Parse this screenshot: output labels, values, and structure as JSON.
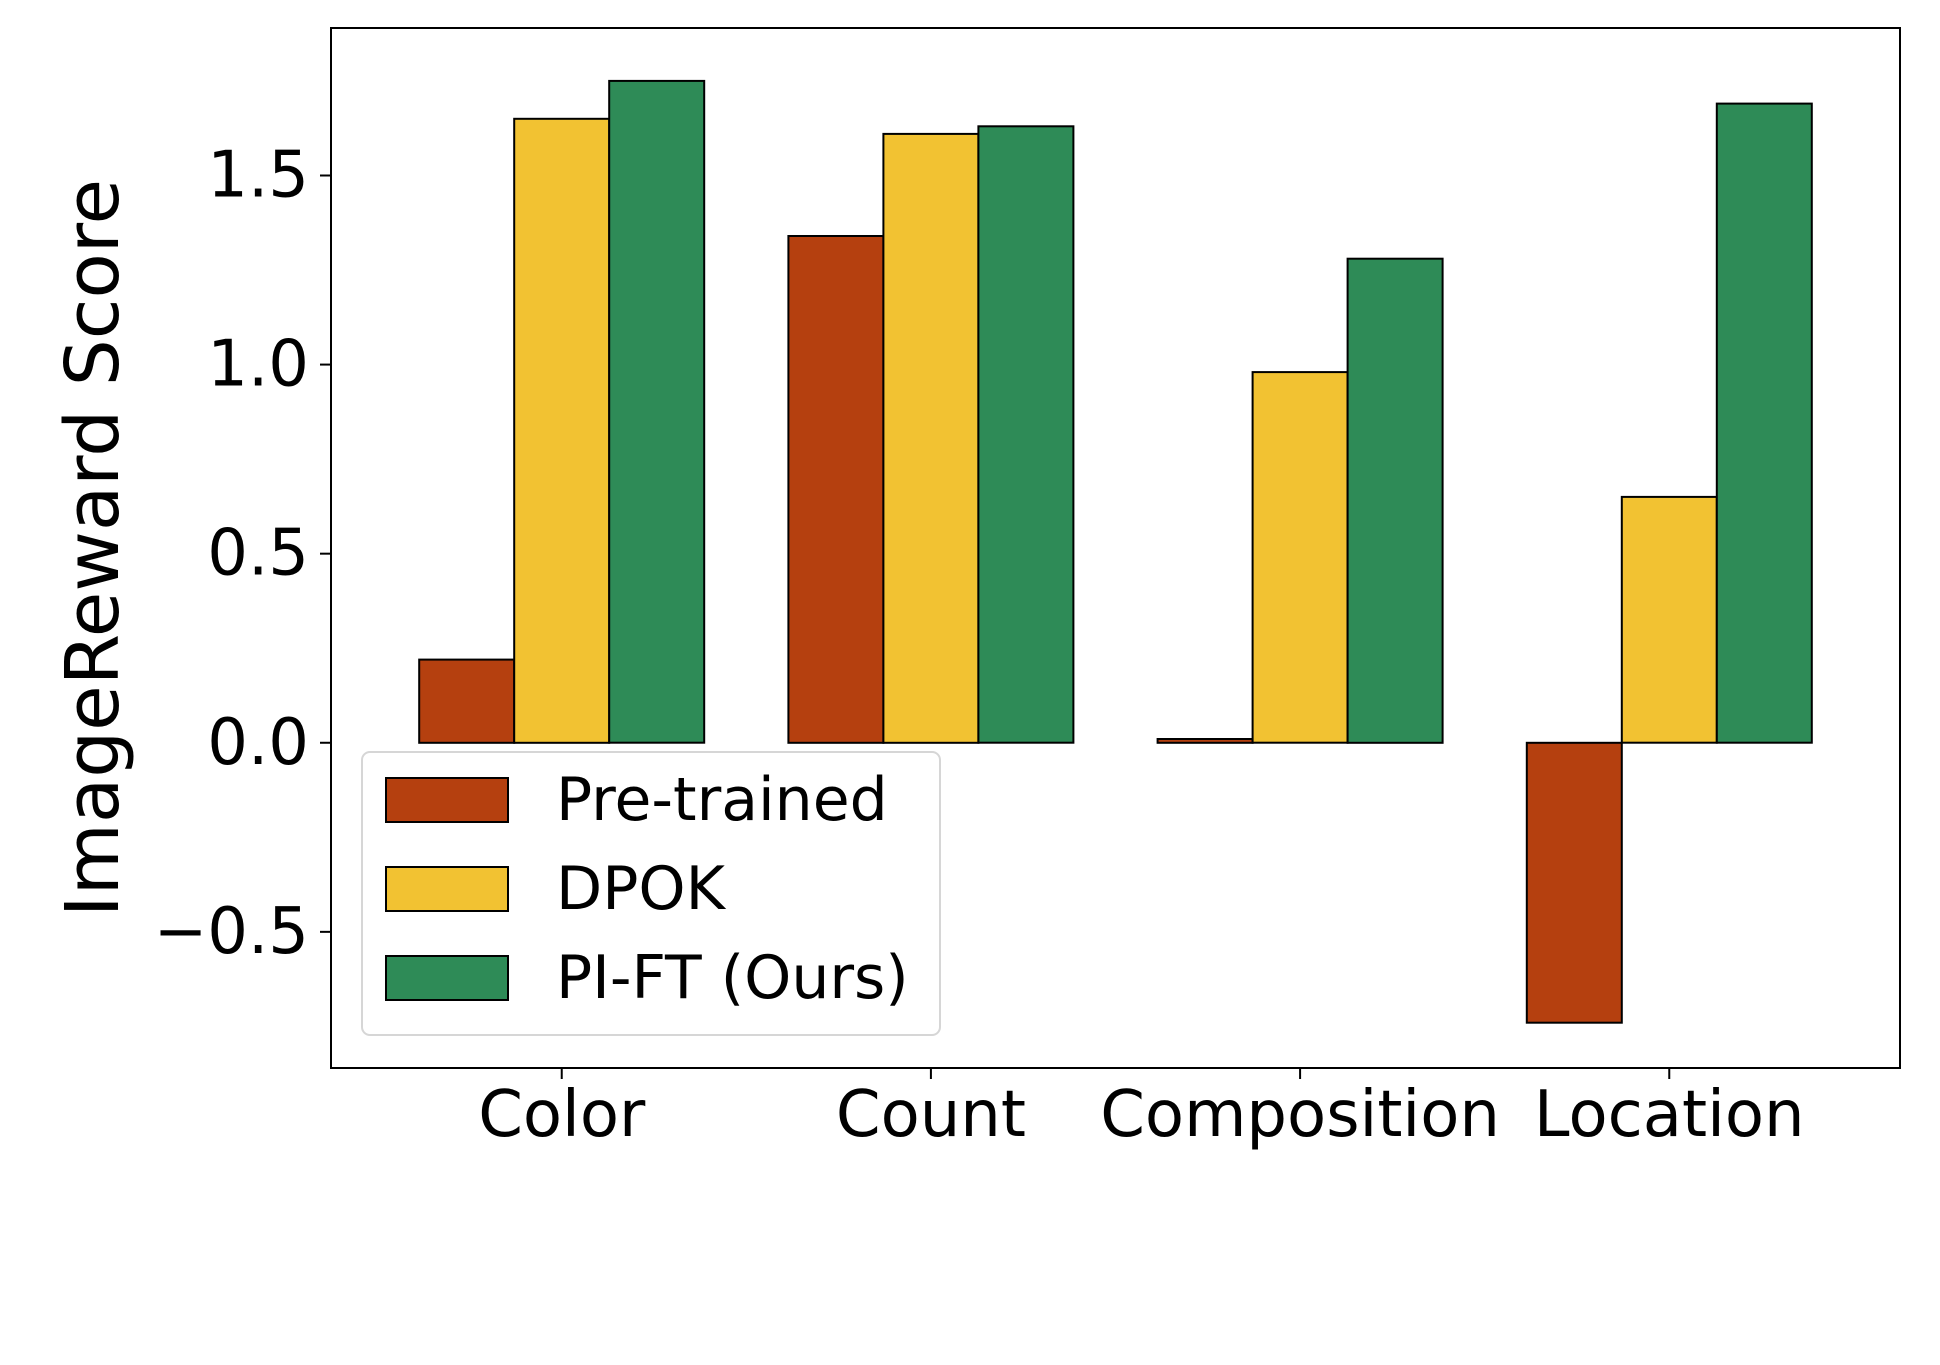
{
  "chart_data": {
    "type": "bar",
    "title": "",
    "xlabel": "",
    "ylabel": "ImageReward Score",
    "categories": [
      "Color",
      "Count",
      "Composition",
      "Location"
    ],
    "ylim": [
      -0.86,
      1.89
    ],
    "yticks": [
      -0.5,
      0.0,
      0.5,
      1.0,
      1.5
    ],
    "ytick_labels": [
      "−0.5",
      "0.0",
      "0.5",
      "1.0",
      "1.5"
    ],
    "grid": false,
    "legend_position": "lower-left",
    "series": [
      {
        "name": "Pre-trained",
        "color": "#b5400f",
        "values": [
          0.22,
          1.34,
          0.01,
          -0.74
        ]
      },
      {
        "name": "DPOK",
        "color": "#f2c232",
        "values": [
          1.65,
          1.61,
          0.98,
          0.65
        ]
      },
      {
        "name": "PI-FT (Ours)",
        "color": "#2e8b57",
        "values": [
          1.75,
          1.63,
          1.28,
          1.69
        ]
      }
    ]
  }
}
